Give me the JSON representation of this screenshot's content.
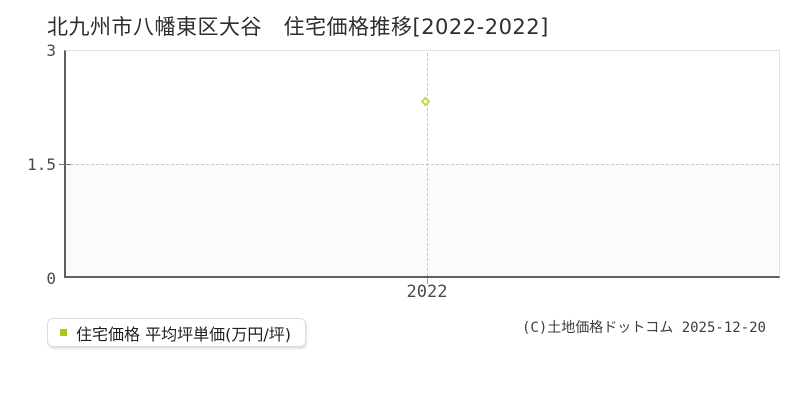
{
  "title": {
    "text": "北九州市八幡東区大谷　住宅価格推移[2022-2022]",
    "color": "#2e2e2e"
  },
  "axes": {
    "y_ticks": [
      "3",
      "1.5",
      "0"
    ],
    "x_ticks": [
      "2022"
    ],
    "axis_color": "#5f5f5f",
    "outer_border_color": "#e2e2e2",
    "grid_color": "#c9c9c9"
  },
  "legend": {
    "label": "住宅価格 平均坪単価(万円/坪)",
    "bullet_color": "#a8cb11"
  },
  "footer": {
    "copyright": "(C)土地価格ドットコム 2025-12-20"
  },
  "chart_data": {
    "type": "scatter",
    "title": "北九州市八幡東区大谷　住宅価格推移[2022-2022]",
    "x": [
      2022
    ],
    "series": [
      {
        "name": "住宅価格 平均坪単価(万円/坪)",
        "values": [
          2.3
        ]
      }
    ],
    "xlabel": "",
    "ylabel": "平均坪単価(万円/坪)",
    "ylim": [
      0,
      3
    ],
    "yticks": [
      0,
      1.5,
      3
    ],
    "xticks": [
      2022
    ],
    "grid": true,
    "grid_style": "dashed",
    "legend_position": "bottom-left",
    "marker_style": "diamond-outline",
    "point_color": "#c8d54f",
    "shaded_band_y": [
      0,
      1.5
    ]
  }
}
